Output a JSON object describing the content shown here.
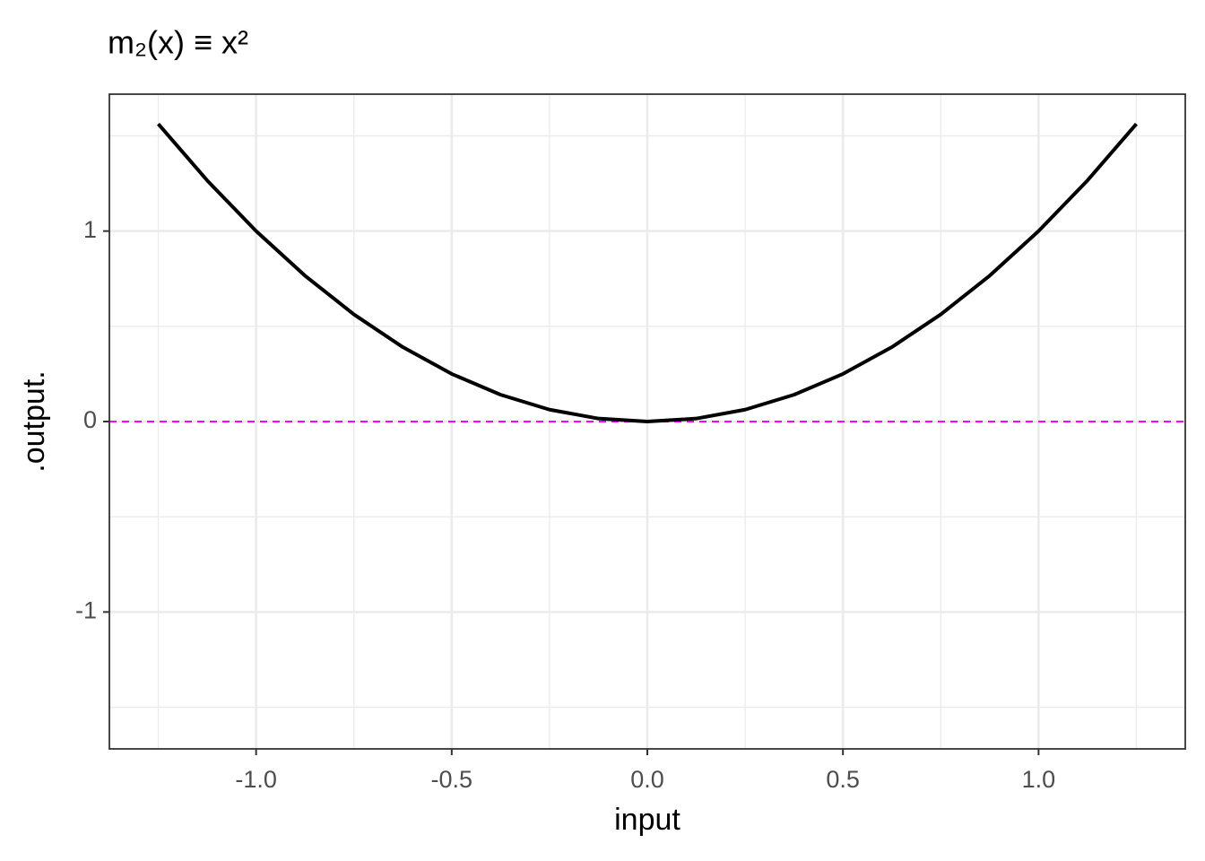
{
  "chart_data": {
    "type": "line",
    "title": "m₂(x) ≡ x²",
    "x_label": "input",
    "y_label": ".output.",
    "x": [
      -1.25,
      -1.125,
      -1,
      -0.875,
      -0.75,
      -0.625,
      -0.5,
      -0.375,
      -0.25,
      -0.125,
      0,
      0.125,
      0.25,
      0.375,
      0.5,
      0.625,
      0.75,
      0.875,
      1,
      1.125,
      1.25
    ],
    "series": [
      {
        "color": "#000000",
        "values": [
          1.5625,
          1.265625,
          1,
          0.765625,
          0.5625,
          0.390625,
          0.25,
          0.140625,
          0.0625,
          0.015625,
          0,
          0.015625,
          0.0625,
          0.140625,
          0.25,
          0.390625,
          0.5625,
          0.765625,
          1,
          1.265625,
          1.5625
        ]
      }
    ],
    "hline": {
      "value": 0,
      "color": "#ff00ff",
      "dashed": true
    },
    "xlim": [
      -1.375,
      1.375
    ],
    "xticks": [
      {
        "value": -1,
        "label": "-1.0"
      },
      {
        "value": -0.5,
        "label": "-0.5"
      },
      {
        "value": 0,
        "label": "0.0"
      },
      {
        "value": 0.5,
        "label": "0.5"
      },
      {
        "value": 1,
        "label": "1.0"
      }
    ],
    "minor_xticks": [
      -1.25,
      -0.75,
      -0.25,
      0.25,
      0.75,
      1.25
    ],
    "ylim": [
      -1.71875,
      1.71875
    ],
    "yticks": [
      -1,
      0,
      1
    ],
    "minor_yticks": [
      -1.5,
      -0.5,
      0.5,
      1.5
    ],
    "grid": true
  }
}
